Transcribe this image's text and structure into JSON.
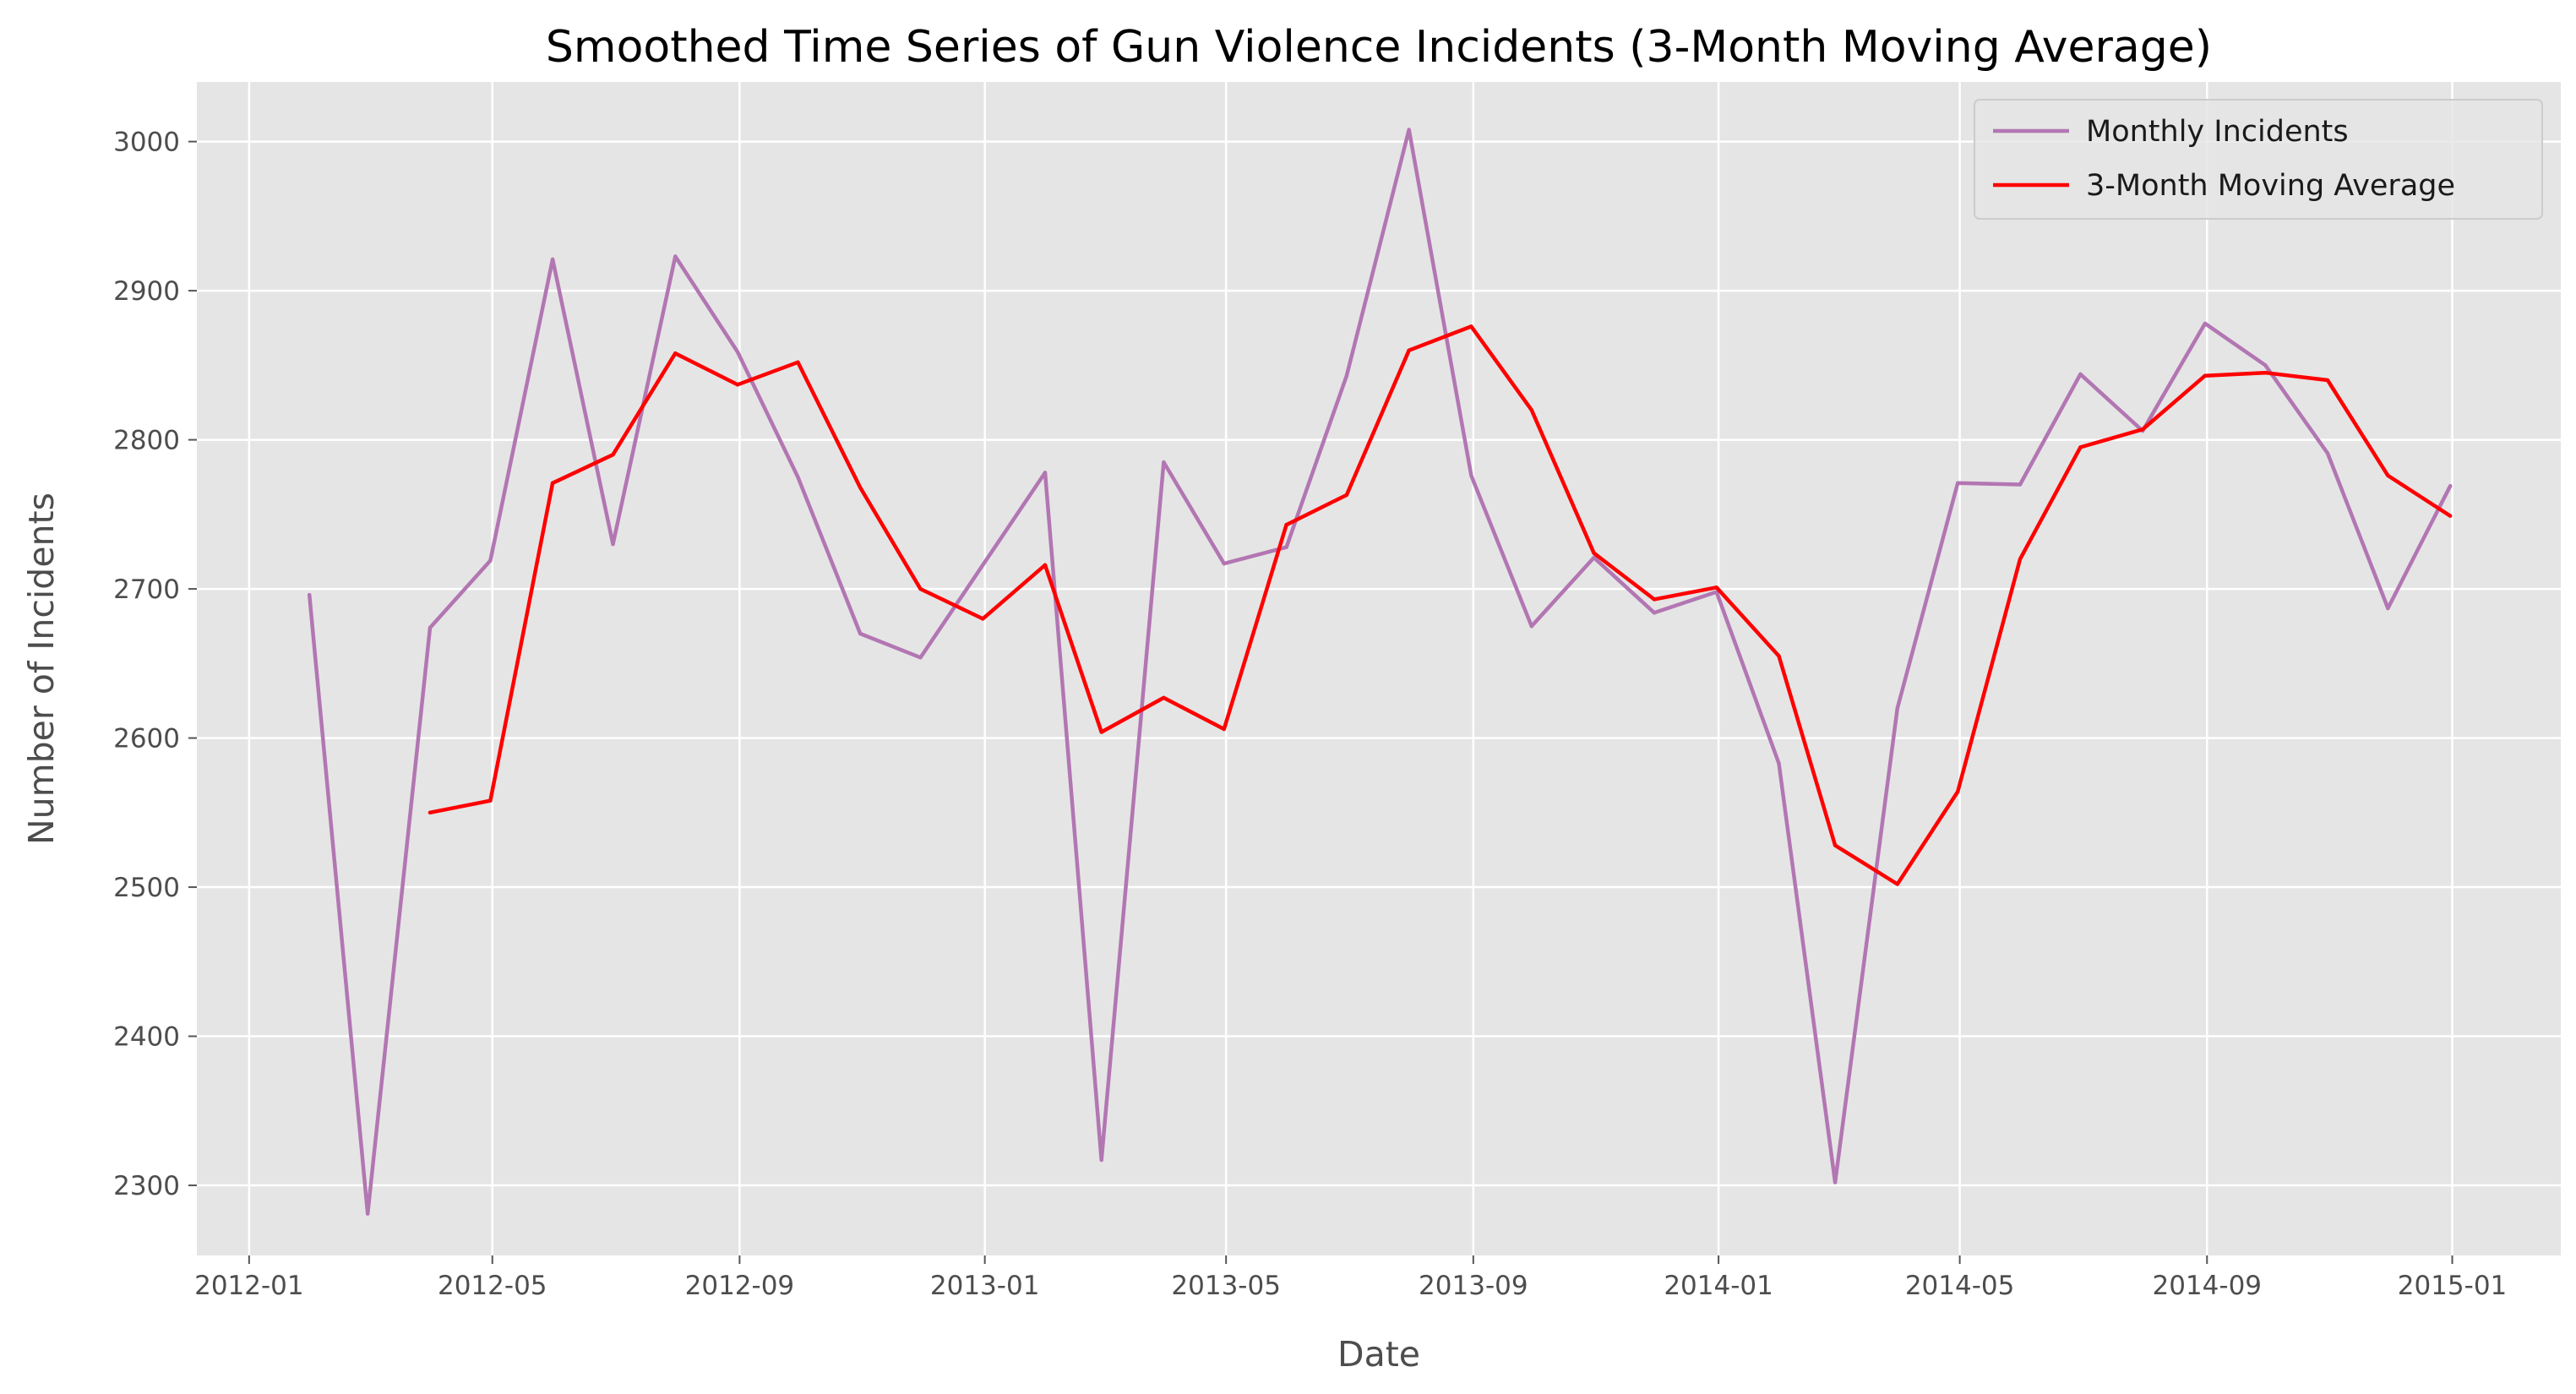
{
  "chart_data": {
    "type": "line",
    "title": "Smoothed Time Series of Gun Violence Incidents (3-Month Moving Average)",
    "xlabel": "Date",
    "ylabel": "Number of Incidents",
    "xlim": [
      "2011-12-06",
      "2015-02-24"
    ],
    "ylim": [
      2253,
      3040
    ],
    "x_ticks": [
      "2012-01",
      "2012-05",
      "2012-09",
      "2013-01",
      "2013-05",
      "2013-09",
      "2014-01",
      "2014-05",
      "2014-09",
      "2015-01"
    ],
    "y_ticks": [
      2300,
      2400,
      2500,
      2600,
      2700,
      2800,
      2900,
      3000
    ],
    "grid": true,
    "legend_position": "top-right",
    "x": [
      "2012-01-31",
      "2012-02-29",
      "2012-03-31",
      "2012-04-30",
      "2012-05-31",
      "2012-06-30",
      "2012-07-31",
      "2012-08-31",
      "2012-09-30",
      "2012-10-31",
      "2012-11-30",
      "2012-12-31",
      "2013-01-31",
      "2013-02-28",
      "2013-03-31",
      "2013-04-30",
      "2013-05-31",
      "2013-06-30",
      "2013-07-31",
      "2013-08-31",
      "2013-09-30",
      "2013-10-31",
      "2013-11-30",
      "2013-12-31",
      "2014-01-31",
      "2014-02-28",
      "2014-03-31",
      "2014-04-30",
      "2014-05-31",
      "2014-06-30",
      "2014-07-31",
      "2014-08-31",
      "2014-09-30",
      "2014-10-31",
      "2014-11-30",
      "2014-12-31"
    ],
    "series": [
      {
        "name": "Monthly Incidents",
        "color": "#b276b2",
        "values": [
          2696,
          2281,
          2674,
          2719,
          2921,
          2730,
          2923,
          2859,
          2775,
          2670,
          2654,
          2716,
          2778,
          2317,
          2785,
          2717,
          2728,
          2843,
          3008,
          2776,
          2675,
          2721,
          2684,
          2698,
          2583,
          2302,
          2620,
          2771,
          2770,
          2844,
          2806,
          2878,
          2850,
          2791,
          2687,
          2769
        ]
      },
      {
        "name": "3-Month Moving Average",
        "color": "#ff0000",
        "values": [
          null,
          null,
          2550,
          2558,
          2771,
          2790,
          2858,
          2837,
          2852,
          2768,
          2700,
          2680,
          2716,
          2604,
          2627,
          2606,
          2743,
          2763,
          2860,
          2876,
          2820,
          2724,
          2693,
          2701,
          2655,
          2528,
          2502,
          2564,
          2720,
          2795,
          2807,
          2843,
          2845,
          2840,
          2776,
          2749
        ]
      }
    ]
  }
}
